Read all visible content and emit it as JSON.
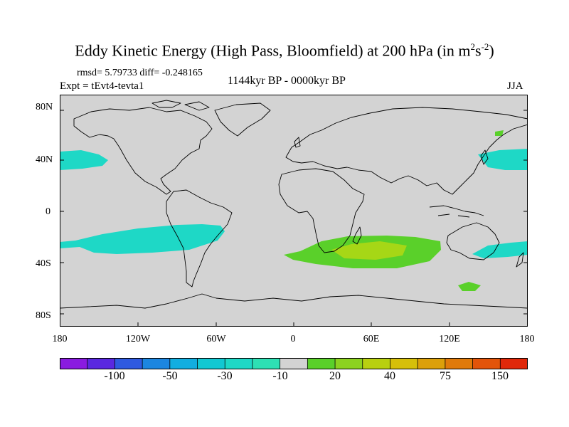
{
  "title": {
    "main": "Eddy Kinetic Energy (High Pass, Bloomfield) at 200 hPa (in m",
    "exp1": "2",
    "mid": "s",
    "exp2": "-2",
    "close": ")"
  },
  "stats": {
    "rmsd_label": "rmsd= 5.79733 diff= -0.248165"
  },
  "experiment": "Expt = tEvt4-tevta1",
  "period": "1144kyr BP - 0000kyr BP",
  "season": "JJA",
  "axes": {
    "y_labels": [
      "80N",
      "40N",
      "0",
      "40S",
      "80S"
    ],
    "y_values": [
      80,
      40,
      0,
      -40,
      -80
    ],
    "x_labels": [
      "180",
      "120W",
      "60W",
      "0",
      "60E",
      "120E",
      "180"
    ],
    "x_values": [
      -180,
      -120,
      -60,
      0,
      60,
      120,
      180
    ],
    "lon_range": [
      -180,
      180
    ],
    "lat_range": [
      -90,
      90
    ]
  },
  "colorbar": {
    "colors": [
      "#8a1be0",
      "#5a28e0",
      "#2f5ae0",
      "#1c86e0",
      "#12aee0",
      "#12c8d2",
      "#1ed8c6",
      "#2ee0b4",
      "#d3d3d3",
      "#5ad02a",
      "#8cd220",
      "#b8d010",
      "#d6bf0a",
      "#dca00a",
      "#e07a0a",
      "#e2540a",
      "#e0280a"
    ],
    "labels": [
      "-100",
      "-50",
      "-30",
      "-10",
      "20",
      "40",
      "75",
      "150"
    ]
  },
  "colors": {
    "land_ocean": "#d3d3d3",
    "coast": "#000000",
    "teal": "#1ed8c6",
    "green": "#5ad02a",
    "lightgreen": "#a6d716"
  }
}
